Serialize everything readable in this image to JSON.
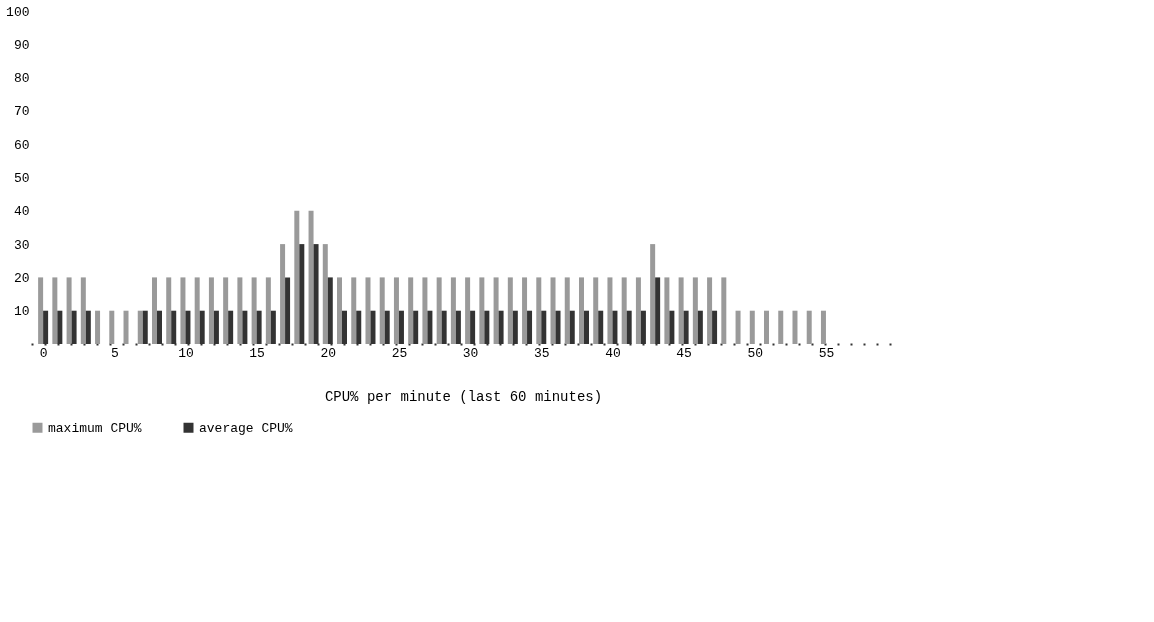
{
  "chart_data": {
    "type": "bar",
    "xlabel": "CPU% per minute (last 60 minutes)",
    "x": [
      0,
      1,
      2,
      3,
      4,
      5,
      6,
      7,
      8,
      9,
      10,
      11,
      12,
      13,
      14,
      15,
      16,
      17,
      18,
      19,
      20,
      21,
      22,
      23,
      24,
      25,
      26,
      27,
      28,
      29,
      30,
      31,
      32,
      33,
      34,
      35,
      36,
      37,
      38,
      39,
      40,
      41,
      42,
      43,
      44,
      45,
      46,
      47,
      48,
      49,
      50,
      51,
      52,
      53,
      54,
      55,
      56,
      57,
      58,
      59
    ],
    "series": [
      {
        "name": "maximum CPU%",
        "color": "#9a9a9a",
        "values": [
          20,
          20,
          20,
          20,
          10,
          10,
          10,
          10,
          20,
          20,
          20,
          20,
          20,
          20,
          20,
          20,
          20,
          30,
          40,
          40,
          30,
          20,
          20,
          20,
          20,
          20,
          20,
          20,
          20,
          20,
          20,
          20,
          20,
          20,
          20,
          20,
          20,
          20,
          20,
          20,
          20,
          20,
          20,
          30,
          20,
          20,
          20,
          20,
          20,
          10,
          10,
          10,
          10,
          10,
          10,
          10,
          0,
          0,
          0,
          0
        ]
      },
      {
        "name": "average CPU%",
        "color": "#333333",
        "values": [
          10,
          10,
          10,
          10,
          0,
          0,
          0,
          10,
          10,
          10,
          10,
          10,
          10,
          10,
          10,
          10,
          10,
          20,
          30,
          30,
          20,
          10,
          10,
          10,
          10,
          10,
          10,
          10,
          10,
          10,
          10,
          10,
          10,
          10,
          10,
          10,
          10,
          10,
          10,
          10,
          10,
          10,
          10,
          20,
          10,
          10,
          10,
          10,
          0,
          0,
          0,
          0,
          0,
          0,
          0,
          0,
          0,
          0,
          0,
          0
        ]
      }
    ],
    "xlim": [
      -0.5,
      59.5
    ],
    "xticks": [
      0,
      5,
      10,
      15,
      20,
      25,
      30,
      35,
      40,
      45,
      50,
      55
    ],
    "ylim": [
      0,
      100
    ],
    "yticks": [
      10,
      20,
      30,
      40,
      50,
      60,
      70,
      80,
      90,
      100
    ],
    "grid": false,
    "legend": "bottom"
  }
}
